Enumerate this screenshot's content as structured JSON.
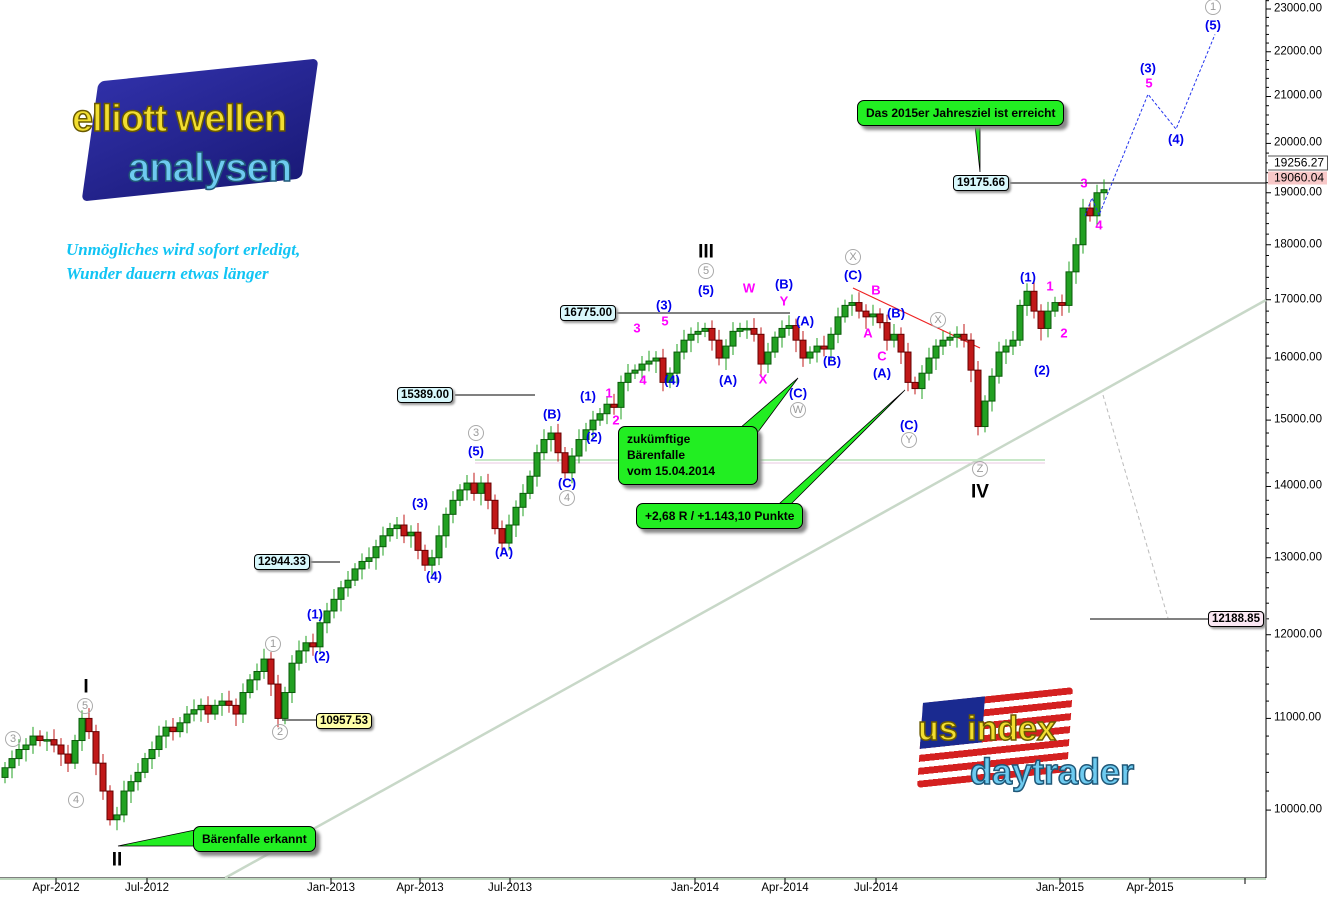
{
  "chart_data": {
    "type": "candlestick",
    "frequency": "weekly",
    "y_scale": "log",
    "ylim": [
      9400,
      23300
    ],
    "y_ticks": [
      "10000.00",
      "11000.00",
      "12000.00",
      "13000.00",
      "14000.00",
      "15000.00",
      "16000.00",
      "17000.00",
      "18000.00",
      "19000.00",
      "20000.00",
      "21000.00",
      "22000.00",
      "23000.00"
    ],
    "x_ticks": [
      "Apr-2012",
      "Jul-2012",
      "Jan-2013",
      "Apr-2013",
      "Jul-2013",
      "Jan-2014",
      "Apr-2014",
      "Jul-2014",
      "Jan-2015",
      "Apr-2015"
    ],
    "closes": [
      10450,
      10550,
      10650,
      10700,
      10800,
      10750,
      10760,
      10700,
      10600,
      10500,
      10750,
      11000,
      10850,
      10500,
      10200,
      9900,
      9950,
      10200,
      10300,
      10400,
      10550,
      10650,
      10800,
      10900,
      10850,
      10950,
      11050,
      11100,
      11150,
      11050,
      11150,
      11200,
      11150,
      11050,
      11300,
      11450,
      11550,
      11700,
      11400,
      11000,
      11300,
      11650,
      11800,
      11900,
      11850,
      12150,
      12300,
      12450,
      12600,
      12700,
      12850,
      12950,
      13000,
      13150,
      13300,
      13400,
      13450,
      13300,
      13350,
      13100,
      12900,
      13000,
      13300,
      13600,
      13800,
      13950,
      14050,
      13900,
      14050,
      13800,
      13400,
      13200,
      13450,
      13700,
      13900,
      14150,
      14500,
      14700,
      14800,
      14500,
      14200,
      14450,
      14700,
      14850,
      15000,
      15100,
      15250,
      15200,
      15600,
      15750,
      15800,
      15900,
      15950,
      16000,
      15600,
      15750,
      16100,
      16300,
      16400,
      16450,
      16500,
      16300,
      16000,
      16200,
      16450,
      16500,
      16500,
      16400,
      15900,
      16100,
      16350,
      16500,
      16550,
      16300,
      16000,
      16100,
      16200,
      16150,
      16400,
      16700,
      16900,
      16950,
      16800,
      16700,
      16750,
      16600,
      16300,
      16400,
      16100,
      15600,
      15500,
      15750,
      16000,
      16200,
      16300,
      16350,
      16400,
      16300,
      15800,
      14900,
      15300,
      15700,
      16100,
      16200,
      16300,
      16900,
      17150,
      16800,
      16500,
      16800,
      16950,
      16900,
      17500,
      18000,
      18700,
      18550,
      19000,
      19060
    ],
    "forecast_path": [
      18550,
      18900,
      18560,
      21050,
      20300,
      22400
    ],
    "current_price": "19256.27",
    "last_price": "19060.04",
    "colors": {
      "up": "#22a022",
      "down": "#c01818",
      "wave_blue": "#0000ee",
      "wave_magenta": "#ff00ff",
      "circled": "#9a9a9a",
      "trendline": "#b8d0b8",
      "resistance": "#ee2222"
    },
    "price_boxes": [
      "16775.00",
      "15389.00",
      "12944.33",
      "10957.53",
      "19175.66",
      "12188.85"
    ],
    "callouts": [
      "Das 2015er Jahresziel ist erreicht",
      "zukümftige Bärenfalle",
      "vom 15.04.2014",
      "+2,68 R / +1.143,10 Punkte",
      "Bärenfalle erkannt"
    ],
    "labels_blue": [
      "(5)",
      "(3)",
      "(4)",
      "(A)",
      "(B)",
      "(C)",
      "(1)",
      "(2)",
      "(3)",
      "(4)",
      "(5)",
      "(A)",
      "(B)",
      "(A)",
      "(C)",
      "(B)",
      "(C)",
      "(B)",
      "(A)",
      "(C)",
      "(1)",
      "(2)",
      "(3)",
      "(4)",
      "(5)",
      "(1)",
      "(2)"
    ],
    "labels_magenta": [
      "3",
      "5",
      "4",
      "1",
      "2",
      "W",
      "Y",
      "X",
      "B",
      "A",
      "C",
      "1",
      "2",
      "3",
      "4",
      "5"
    ],
    "labels_circled": [
      "3",
      "5",
      "4",
      "1",
      "2",
      "3",
      "4",
      "5",
      "X",
      "W",
      "X",
      "Y",
      "Z",
      "1"
    ],
    "labels_roman": [
      "I",
      "II",
      "III",
      "IV"
    ]
  },
  "branding": {
    "logo1_line1": "elliott wellen",
    "logo1_line2": "analysen",
    "logo2_line1": "us index",
    "logo2_line2": "daytrader",
    "motto_line1": "Unmögliches wird sofort erledigt,",
    "motto_line2": "Wunder dauern etwas länger"
  }
}
